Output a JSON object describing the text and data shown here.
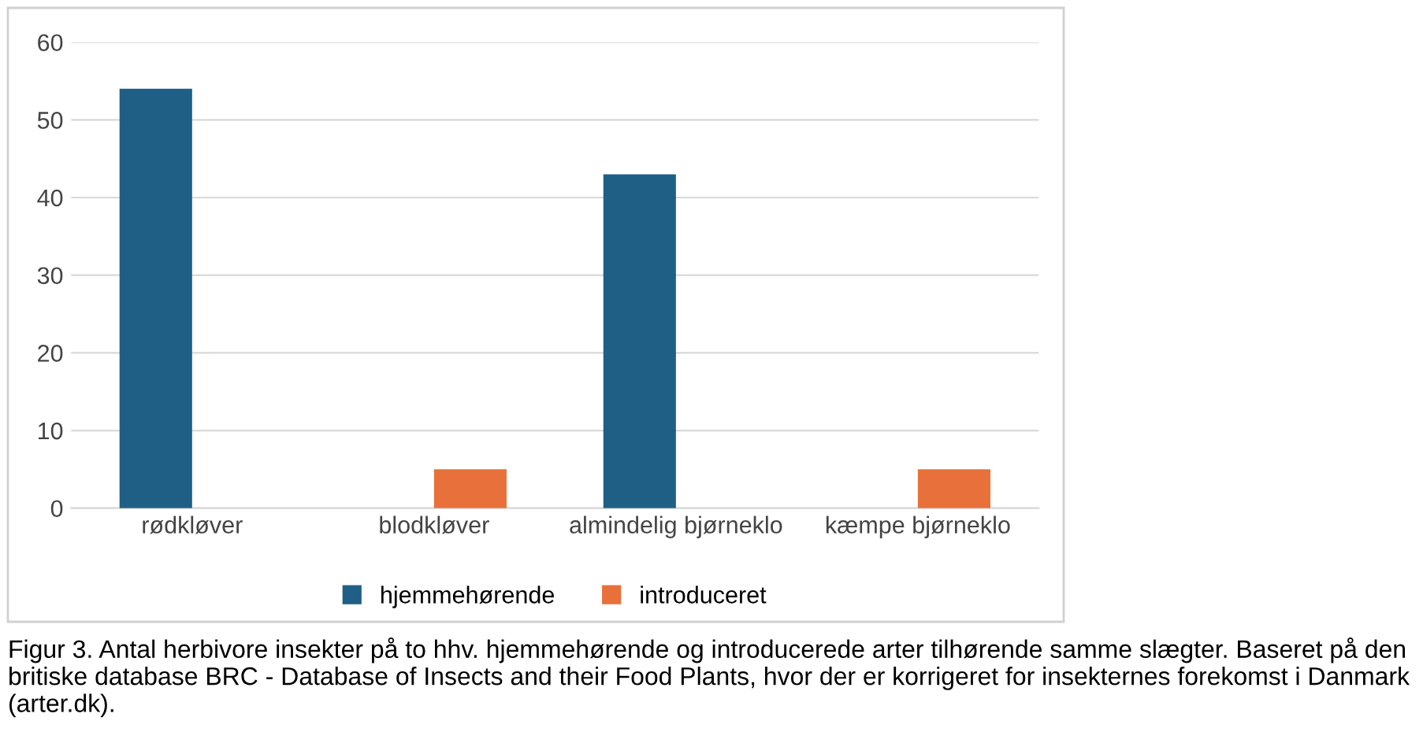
{
  "chart_data": {
    "type": "bar",
    "categories": [
      "rødkløver",
      "blodkløver",
      "almindelig bjørneklo",
      "kæmpe bjørneklo"
    ],
    "series": [
      {
        "name": "hjemmehørende",
        "color": "#1f5f85",
        "values": [
          54,
          null,
          43,
          null
        ]
      },
      {
        "name": "introduceret",
        "color": "#e8703a",
        "values": [
          null,
          5,
          null,
          5
        ]
      }
    ],
    "ylim": [
      0,
      60
    ],
    "yticks": [
      0,
      10,
      20,
      30,
      40,
      50,
      60
    ],
    "grid": "y",
    "legend": "bottom",
    "annotations": [
      "Figur 3. Antal herbivore insekter på to hhv. hjemmehørende og introducerede arter tilhørende samme slægter. Baseret på den britiske database BRC - Database of Insects and their Food Plants, hvor der er korrigeret for insekternes forekomst i Danmark (arter.dk)."
    ]
  }
}
